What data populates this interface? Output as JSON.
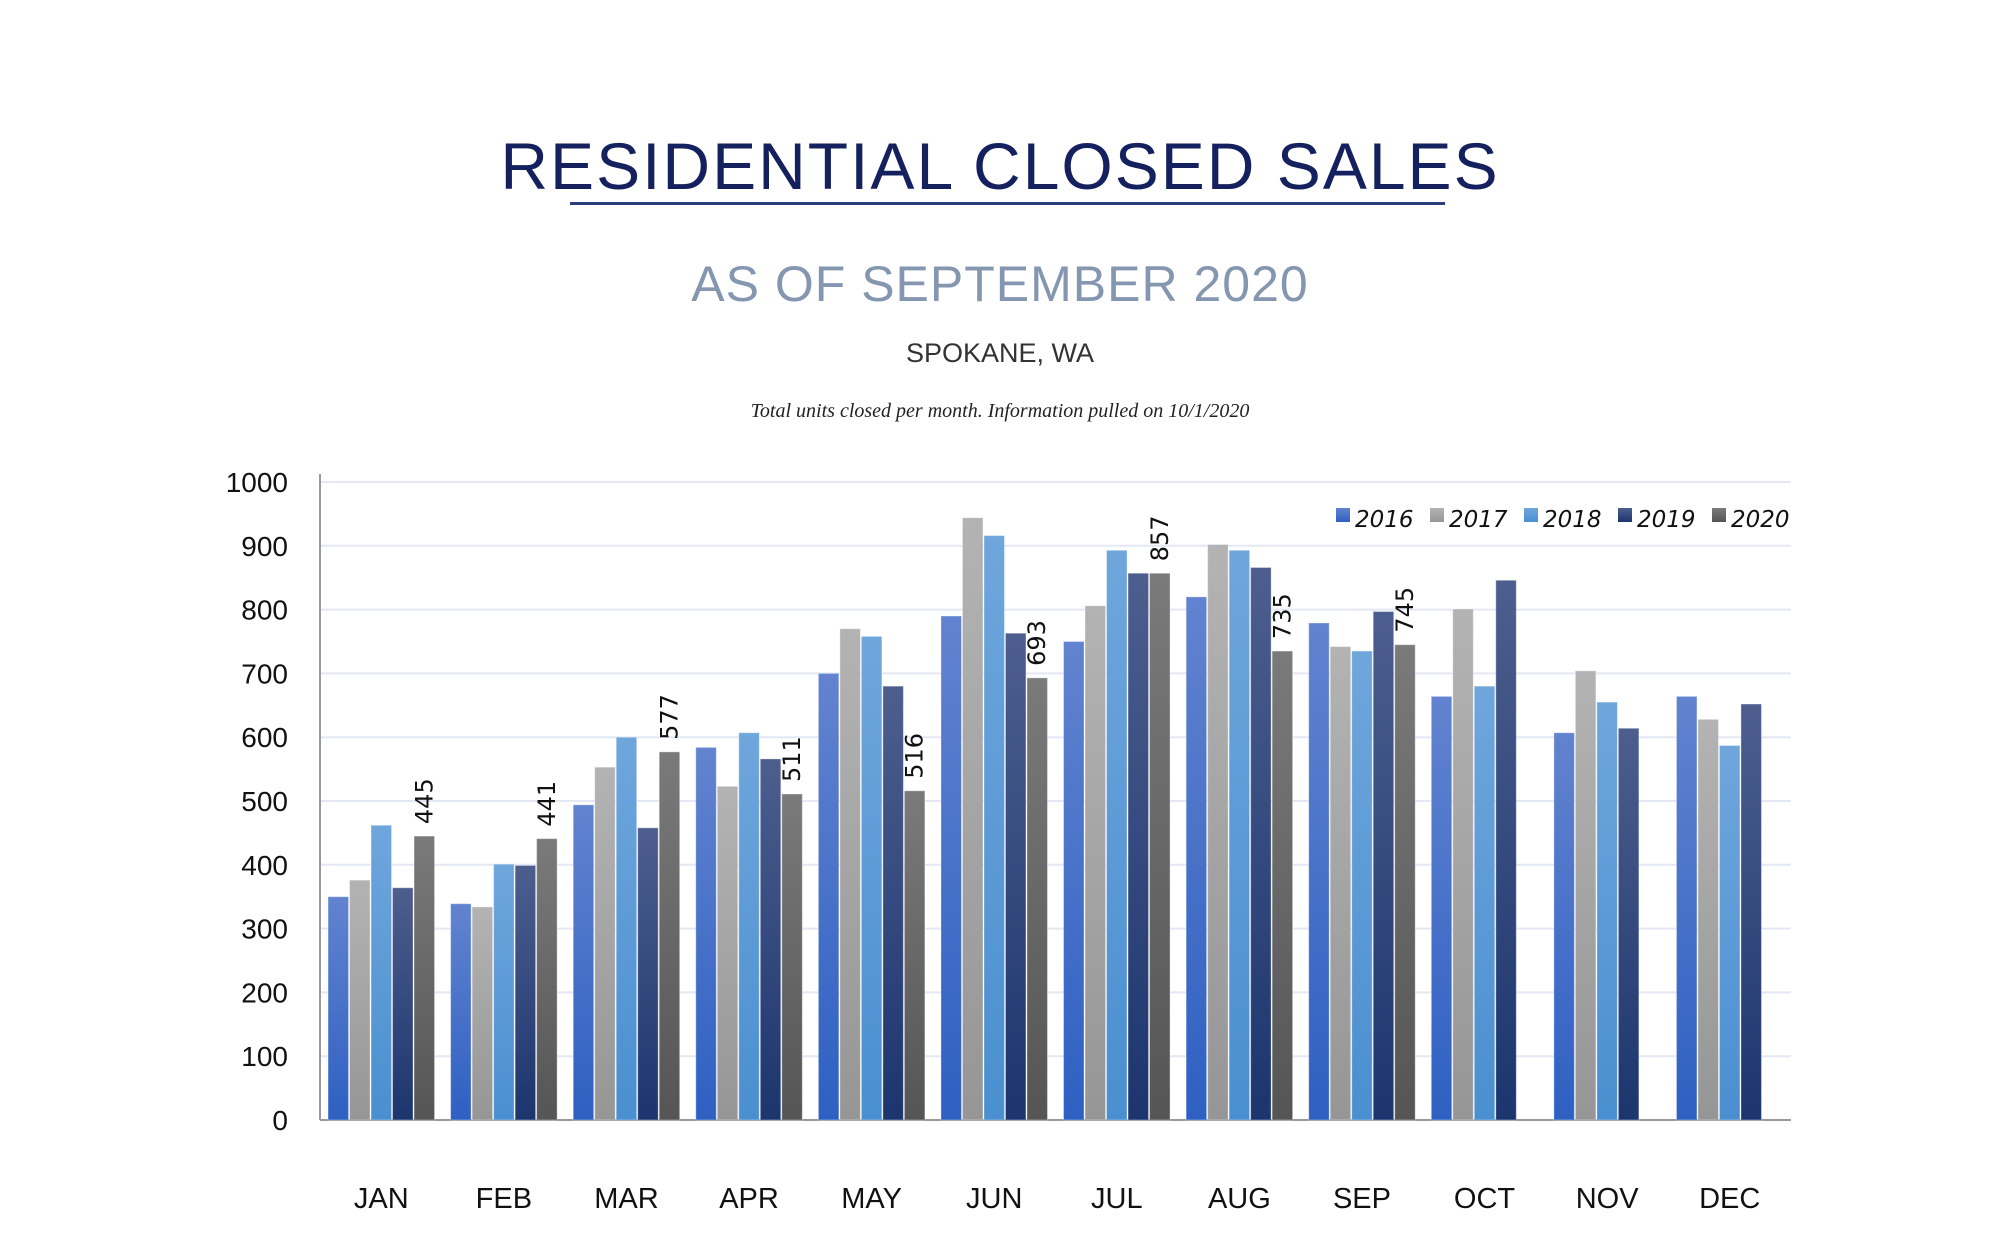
{
  "header": {
    "title": "RESIDENTIAL CLOSED SALES",
    "subtitle": "AS OF SEPTEMBER 2020",
    "location": "SPOKANE, WA",
    "note": "Total units closed per month.  Information pulled on 10/1/2020"
  },
  "chart_data": {
    "type": "bar",
    "title": "",
    "xlabel": "",
    "ylabel": "",
    "ylim": [
      0,
      1000
    ],
    "yticks": [
      0,
      100,
      200,
      300,
      400,
      500,
      600,
      700,
      800,
      900,
      1000
    ],
    "grid": true,
    "legend_position": "top-right",
    "categories": [
      "JAN",
      "FEB",
      "MAR",
      "APR",
      "MAY",
      "JUN",
      "JUL",
      "AUG",
      "SEP",
      "OCT",
      "NOV",
      "DEC"
    ],
    "series": [
      {
        "name": "2016",
        "color": "#4472c4",
        "values": [
          350,
          339,
          494,
          584,
          700,
          790,
          750,
          820,
          779,
          664,
          607,
          664
        ]
      },
      {
        "name": "2017",
        "color": "#a5a5a5",
        "values": [
          376,
          334,
          553,
          523,
          770,
          944,
          806,
          902,
          742,
          801,
          704,
          628
        ]
      },
      {
        "name": "2018",
        "color": "#5b9bd5",
        "values": [
          462,
          401,
          600,
          607,
          758,
          916,
          893,
          893,
          735,
          680,
          655,
          587
        ]
      },
      {
        "name": "2019",
        "color": "#264478",
        "values": [
          364,
          399,
          458,
          566,
          680,
          763,
          857,
          866,
          797,
          846,
          614,
          652
        ]
      },
      {
        "name": "2020",
        "color": "#636363",
        "values": [
          445,
          441,
          577,
          511,
          516,
          693,
          857,
          735,
          745,
          null,
          null,
          null
        ],
        "data_labels": true
      }
    ]
  }
}
